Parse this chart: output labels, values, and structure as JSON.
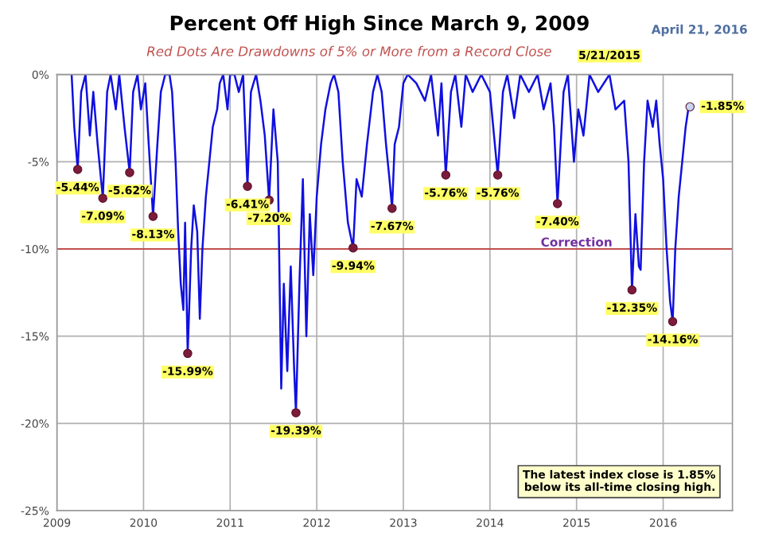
{
  "chart_data": {
    "type": "line",
    "title": "Percent Off High Since March 9, 2009",
    "subtitle": "Red Dots Are Drawdowns of 5% or More from a Record Close",
    "xlim": [
      2009,
      2016.8
    ],
    "xticks": [
      {
        "value": 2009,
        "label": "2009"
      },
      {
        "value": 2010,
        "label": "2010"
      },
      {
        "value": 2011,
        "label": "2011"
      },
      {
        "value": 2012,
        "label": "2012"
      },
      {
        "value": 2013,
        "label": "2013"
      },
      {
        "value": 2014,
        "label": "2014"
      },
      {
        "value": 2015,
        "label": "2015"
      },
      {
        "value": 2016,
        "label": "2016"
      }
    ],
    "ylim": [
      -25,
      0
    ],
    "yticks": [
      {
        "value": -25,
        "label": "-25%"
      },
      {
        "value": -20,
        "label": "-20%"
      },
      {
        "value": -15,
        "label": "-15%"
      },
      {
        "value": -10,
        "label": "-10%"
      },
      {
        "value": -5,
        "label": "-5%"
      },
      {
        "value": 0,
        "label": "0%"
      }
    ],
    "grid": true,
    "ref_lines": [
      {
        "axis": "y",
        "value": -10,
        "label": "Correction",
        "color": "#c0504d"
      }
    ],
    "annotations": [
      {
        "text": "5/21/2015",
        "x": 2015.38,
        "y": 0
      },
      "April 21, 2016",
      "The latest index close is 1.85%\nbelow its all-time closing high."
    ],
    "series": [
      {
        "color": "#1010e0",
        "marker": "none",
        "x": [
          2009.17,
          2009.2,
          2009.24,
          2009.28,
          2009.33,
          2009.38,
          2009.42,
          2009.47,
          2009.53,
          2009.58,
          2009.62,
          2009.68,
          2009.72,
          2009.78,
          2009.84,
          2009.88,
          2009.93,
          2009.97,
          2010.02,
          2010.06,
          2010.11,
          2010.16,
          2010.2,
          2010.25,
          2010.3,
          2010.33,
          2010.37,
          2010.4,
          2010.43,
          2010.46,
          2010.48,
          2010.51,
          2010.55,
          2010.58,
          2010.62,
          2010.65,
          2010.68,
          2010.72,
          2010.76,
          2010.8,
          2010.85,
          2010.88,
          2010.92,
          2010.97,
          2011.0,
          2011.05,
          2011.1,
          2011.15,
          2011.2,
          2011.24,
          2011.3,
          2011.35,
          2011.4,
          2011.45,
          2011.5,
          2011.55,
          2011.59,
          2011.62,
          2011.66,
          2011.7,
          2011.74,
          2011.76,
          2011.8,
          2011.84,
          2011.88,
          2011.92,
          2011.96,
          2012.0,
          2012.05,
          2012.1,
          2012.16,
          2012.2,
          2012.25,
          2012.3,
          2012.36,
          2012.42,
          2012.46,
          2012.52,
          2012.58,
          2012.65,
          2012.7,
          2012.75,
          2012.8,
          2012.84,
          2012.87,
          2012.9,
          2012.95,
          2013.0,
          2013.05,
          2013.15,
          2013.25,
          2013.32,
          2013.4,
          2013.44,
          2013.49,
          2013.55,
          2013.6,
          2013.67,
          2013.72,
          2013.8,
          2013.9,
          2014.0,
          2014.09,
          2014.15,
          2014.2,
          2014.28,
          2014.35,
          2014.45,
          2014.55,
          2014.62,
          2014.7,
          2014.74,
          2014.78,
          2014.85,
          2014.9,
          2014.97,
          2015.02,
          2015.08,
          2015.15,
          2015.25,
          2015.38,
          2015.45,
          2015.55,
          2015.6,
          2015.64,
          2015.68,
          2015.72,
          2015.74,
          2015.78,
          2015.82,
          2015.88,
          2015.92,
          2015.96,
          2016.0,
          2016.04,
          2016.08,
          2016.11,
          2016.14,
          2016.18,
          2016.22,
          2016.26,
          2016.29,
          2016.31
        ],
        "values": [
          0,
          -3,
          -5.44,
          -1,
          0,
          -3.5,
          -1,
          -4,
          -7.09,
          -1,
          0,
          -2,
          0,
          -3,
          -5.62,
          -1,
          0,
          -2,
          -0.5,
          -4,
          -8.13,
          -4,
          -1,
          0,
          0,
          -1,
          -5,
          -9,
          -12,
          -13.5,
          -8.5,
          -15.99,
          -10,
          -7.5,
          -9,
          -14,
          -10,
          -7,
          -5,
          -3,
          -2,
          -0.5,
          0,
          -2,
          0,
          0,
          -1,
          0,
          -6.41,
          -1,
          0,
          -1.5,
          -3.5,
          -7.2,
          -2,
          -5,
          -18,
          -12,
          -17,
          -11,
          -17,
          -19.39,
          -12,
          -6,
          -15,
          -8,
          -11.5,
          -7,
          -4,
          -2,
          -0.5,
          0,
          -1,
          -5,
          -8.5,
          -9.94,
          -6,
          -7,
          -4,
          -1,
          0,
          -1,
          -4,
          -6,
          -7.67,
          -4,
          -3,
          -0.5,
          0,
          -0.5,
          -1.5,
          0,
          -3.5,
          -0.5,
          -5.76,
          -1,
          0,
          -3,
          0,
          -1,
          0,
          -1,
          -5.76,
          -1,
          0,
          -2.5,
          0,
          -1,
          0,
          -2,
          -0.5,
          -3,
          -7.4,
          -1,
          0,
          -5,
          -2,
          -3.5,
          0,
          -1,
          0,
          -2,
          -1.5,
          -5,
          -12.35,
          -8,
          -11,
          -11.2,
          -5,
          -1.5,
          -3,
          -1.5,
          -4,
          -6,
          -10,
          -13,
          -14.16,
          -10,
          -7,
          -5,
          -3,
          -2,
          -1.85
        ]
      },
      {
        "type": "scatter",
        "marker": "circle",
        "colors": [
          "#7b1c3a",
          "#7b1c3a",
          "#7b1c3a",
          "#7b1c3a",
          "#7b1c3a",
          "#7b1c3a",
          "#7b1c3a",
          "#7b1c3a",
          "#7b1c3a",
          "#7b1c3a",
          "#7b1c3a",
          "#7b1c3a",
          "#7b1c3a",
          "#7b1c3a",
          "#7b1c3a",
          "#c8d4f0"
        ],
        "x": [
          2009.24,
          2009.53,
          2009.84,
          2010.11,
          2010.51,
          2011.2,
          2011.45,
          2011.76,
          2012.42,
          2012.87,
          2013.49,
          2014.09,
          2014.78,
          2015.64,
          2016.11,
          2016.31
        ],
        "values": [
          -5.44,
          -7.09,
          -5.62,
          -8.13,
          -15.99,
          -6.41,
          -7.2,
          -19.39,
          -9.94,
          -7.67,
          -5.76,
          -5.76,
          -7.4,
          -12.35,
          -14.16,
          -1.85
        ],
        "value_labels": [
          "-5.44%",
          "-7.09%",
          "-5.62%",
          "-8.13%",
          "-15.99%",
          "-6.41%",
          "-7.20%",
          "-19.39%",
          "-9.94%",
          "-7.67%",
          "-5.76%",
          "-5.76%",
          "-7.40%",
          "-12.35%",
          "-14.16%",
          "-1.85%"
        ]
      }
    ]
  }
}
